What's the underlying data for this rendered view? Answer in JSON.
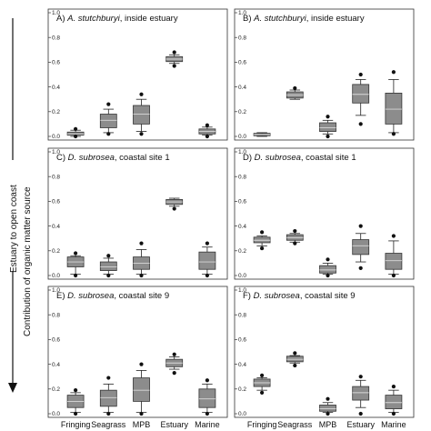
{
  "figure": {
    "side_label": "Estuary to open coast",
    "ylabel": "Contribution of organic matter source"
  },
  "chart_data": [
    {
      "type": "box",
      "panel": "A",
      "title_prefix": "A) ",
      "title_species": "A. stutchburyi",
      "title_suffix": ", inside estuary",
      "categories": [
        "Fringing",
        "Seagrass",
        "MPB",
        "Estuary",
        "Marine"
      ],
      "ylim": [
        0,
        1.0
      ],
      "yticks": [
        "0.0",
        "0.2",
        "0.4",
        "0.6",
        "0.8",
        "1.0"
      ],
      "boxes": [
        {
          "lw": 0.0,
          "q1": 0.01,
          "med": 0.02,
          "q3": 0.035,
          "uw": 0.05,
          "outliers": [
            0.06,
            0.0
          ]
        },
        {
          "lw": 0.03,
          "q1": 0.07,
          "med": 0.13,
          "q3": 0.18,
          "uw": 0.22,
          "outliers": [
            0.26,
            0.02
          ]
        },
        {
          "lw": 0.04,
          "q1": 0.1,
          "med": 0.18,
          "q3": 0.25,
          "uw": 0.3,
          "outliers": [
            0.34,
            0.02
          ]
        },
        {
          "lw": 0.59,
          "q1": 0.605,
          "med": 0.625,
          "q3": 0.645,
          "uw": 0.66,
          "outliers": [
            0.68,
            0.57
          ]
        },
        {
          "lw": 0.01,
          "q1": 0.02,
          "med": 0.04,
          "q3": 0.06,
          "uw": 0.075,
          "outliers": [
            0.09,
            0.0
          ]
        }
      ]
    },
    {
      "type": "box",
      "panel": "B",
      "title_prefix": "B) ",
      "title_species": "A. stutchburyi",
      "title_suffix": ", inside estuary",
      "categories": [
        "Fringing",
        "Seagrass",
        "MPB",
        "Estuary",
        "Marine"
      ],
      "ylim": [
        0,
        1.0
      ],
      "yticks": [
        "0.0",
        "0.2",
        "0.4",
        "0.6",
        "0.8",
        "1.0"
      ],
      "boxes": [
        {
          "lw": 0.0,
          "q1": 0.005,
          "med": 0.015,
          "q3": 0.025,
          "uw": 0.03,
          "outliers": []
        },
        {
          "lw": 0.3,
          "q1": 0.31,
          "med": 0.335,
          "q3": 0.36,
          "uw": 0.375,
          "outliers": [
            0.39
          ]
        },
        {
          "lw": 0.02,
          "q1": 0.04,
          "med": 0.07,
          "q3": 0.11,
          "uw": 0.13,
          "outliers": [
            0.16,
            0.0
          ]
        },
        {
          "lw": 0.17,
          "q1": 0.27,
          "med": 0.34,
          "q3": 0.42,
          "uw": 0.46,
          "outliers": [
            0.5,
            0.1
          ]
        },
        {
          "lw": 0.03,
          "q1": 0.1,
          "med": 0.22,
          "q3": 0.35,
          "uw": 0.46,
          "outliers": [
            0.52,
            0.02
          ]
        }
      ]
    },
    {
      "type": "box",
      "panel": "C",
      "title_prefix": "C) ",
      "title_species": "D. subrosea",
      "title_suffix": ", coastal site 1",
      "categories": [
        "Fringing",
        "Seagrass",
        "MPB",
        "Estuary",
        "Marine"
      ],
      "ylim": [
        0,
        1.0
      ],
      "yticks": [
        "0.0",
        "0.2",
        "0.4",
        "0.6",
        "0.8",
        "1.0"
      ],
      "boxes": [
        {
          "lw": 0.01,
          "q1": 0.07,
          "med": 0.11,
          "q3": 0.15,
          "uw": 0.16,
          "outliers": [
            0.18,
            0.0
          ]
        },
        {
          "lw": 0.01,
          "q1": 0.04,
          "med": 0.07,
          "q3": 0.11,
          "uw": 0.14,
          "outliers": [
            0.16,
            0.0
          ]
        },
        {
          "lw": 0.01,
          "q1": 0.05,
          "med": 0.1,
          "q3": 0.15,
          "uw": 0.21,
          "outliers": [
            0.26,
            0.0
          ]
        },
        {
          "lw": 0.56,
          "q1": 0.575,
          "med": 0.595,
          "q3": 0.615,
          "uw": 0.625,
          "outliers": [
            0.54
          ]
        },
        {
          "lw": 0.01,
          "q1": 0.05,
          "med": 0.11,
          "q3": 0.19,
          "uw": 0.23,
          "outliers": [
            0.26,
            0.0
          ]
        }
      ]
    },
    {
      "type": "box",
      "panel": "D",
      "title_prefix": "D) ",
      "title_species": "D. subrosea",
      "title_suffix": ", coastal site 1",
      "categories": [
        "Fringing",
        "Seagrass",
        "MPB",
        "Estuary",
        "Marine"
      ],
      "ylim": [
        0,
        1.0
      ],
      "yticks": [
        "0.0",
        "0.2",
        "0.4",
        "0.6",
        "0.8",
        "1.0"
      ],
      "boxes": [
        {
          "lw": 0.24,
          "q1": 0.265,
          "med": 0.285,
          "q3": 0.31,
          "uw": 0.32,
          "outliers": [
            0.35,
            0.22
          ]
        },
        {
          "lw": 0.27,
          "q1": 0.285,
          "med": 0.305,
          "q3": 0.33,
          "uw": 0.34,
          "outliers": [
            0.36,
            0.26
          ]
        },
        {
          "lw": 0.01,
          "q1": 0.02,
          "med": 0.045,
          "q3": 0.08,
          "uw": 0.1,
          "outliers": [
            0.13,
            0.0
          ]
        },
        {
          "lw": 0.11,
          "q1": 0.17,
          "med": 0.24,
          "q3": 0.29,
          "uw": 0.34,
          "outliers": [
            0.4,
            0.06
          ]
        },
        {
          "lw": 0.01,
          "q1": 0.05,
          "med": 0.12,
          "q3": 0.18,
          "uw": 0.28,
          "outliers": [
            0.32,
            0.0
          ]
        }
      ]
    },
    {
      "type": "box",
      "panel": "E",
      "title_prefix": "E) ",
      "title_species": "D. subrosea",
      "title_suffix": ", coastal site 9",
      "categories": [
        "Fringing",
        "Seagrass",
        "MPB",
        "Estuary",
        "Marine"
      ],
      "ylim": [
        0,
        1.0
      ],
      "yticks": [
        "0.0",
        "0.2",
        "0.4",
        "0.6",
        "0.8",
        "1.0"
      ],
      "boxes": [
        {
          "lw": 0.01,
          "q1": 0.05,
          "med": 0.1,
          "q3": 0.15,
          "uw": 0.17,
          "outliers": [
            0.19,
            0.0
          ]
        },
        {
          "lw": 0.01,
          "q1": 0.06,
          "med": 0.13,
          "q3": 0.19,
          "uw": 0.24,
          "outliers": [
            0.29,
            0.0
          ]
        },
        {
          "lw": 0.01,
          "q1": 0.1,
          "med": 0.19,
          "q3": 0.29,
          "uw": 0.35,
          "outliers": [
            0.4,
            0.0
          ]
        },
        {
          "lw": 0.36,
          "q1": 0.38,
          "med": 0.41,
          "q3": 0.44,
          "uw": 0.46,
          "outliers": [
            0.48,
            0.33
          ]
        },
        {
          "lw": 0.01,
          "q1": 0.05,
          "med": 0.12,
          "q3": 0.2,
          "uw": 0.24,
          "outliers": [
            0.27,
            0.0
          ]
        }
      ]
    },
    {
      "type": "box",
      "panel": "F",
      "title_prefix": "F) ",
      "title_species": "D. subrosea",
      "title_suffix": ", coastal site 9",
      "categories": [
        "Fringing",
        "Seagrass",
        "MPB",
        "Estuary",
        "Marine"
      ],
      "ylim": [
        0,
        1.0
      ],
      "yticks": [
        "0.0",
        "0.2",
        "0.4",
        "0.6",
        "0.8",
        "1.0"
      ],
      "boxes": [
        {
          "lw": 0.19,
          "q1": 0.22,
          "med": 0.25,
          "q3": 0.28,
          "uw": 0.29,
          "outliers": [
            0.31,
            0.17
          ]
        },
        {
          "lw": 0.41,
          "q1": 0.42,
          "med": 0.44,
          "q3": 0.465,
          "uw": 0.47,
          "outliers": [
            0.49,
            0.39
          ]
        },
        {
          "lw": 0.01,
          "q1": 0.02,
          "med": 0.04,
          "q3": 0.07,
          "uw": 0.09,
          "outliers": [
            0.12,
            0.0
          ]
        },
        {
          "lw": 0.05,
          "q1": 0.11,
          "med": 0.17,
          "q3": 0.22,
          "uw": 0.27,
          "outliers": [
            0.3,
            0.0
          ]
        },
        {
          "lw": 0.01,
          "q1": 0.04,
          "med": 0.09,
          "q3": 0.15,
          "uw": 0.19,
          "outliers": [
            0.22,
            0.0
          ]
        }
      ]
    }
  ]
}
